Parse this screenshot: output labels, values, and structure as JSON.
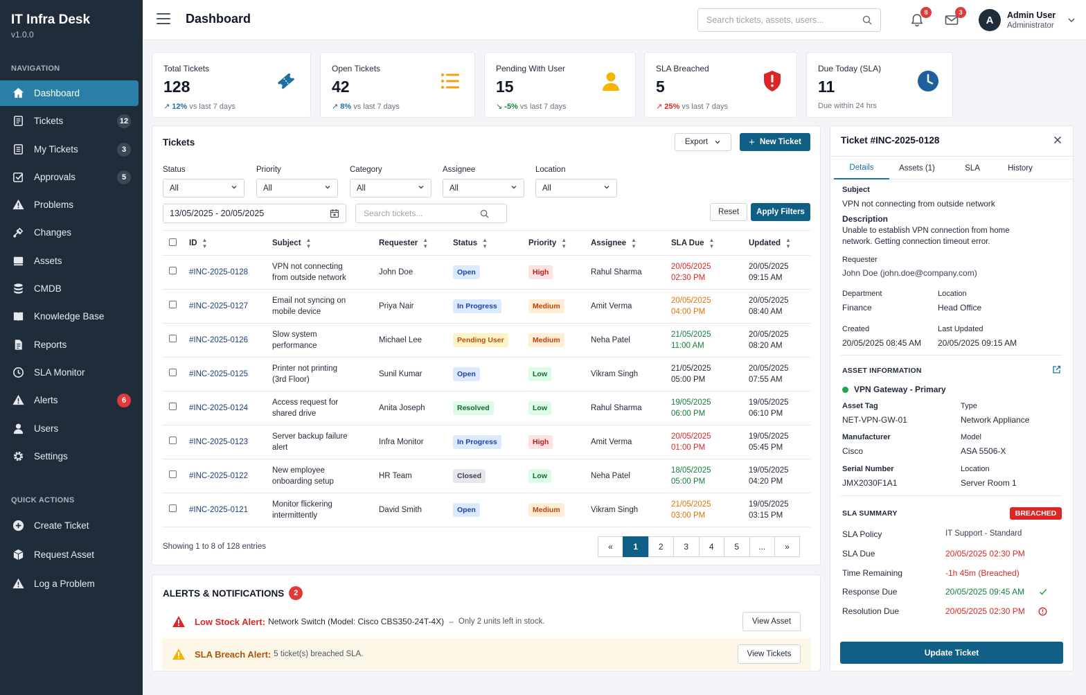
{
  "app": {
    "title": "IT Infra Desk",
    "version": "v1.0.0"
  },
  "sidebar": {
    "nav_heading": "NAVIGATION",
    "items": [
      {
        "label": "Dashboard",
        "icon": "home-icon"
      },
      {
        "label": "Tickets",
        "badge": "12",
        "icon": "ticket-icon"
      },
      {
        "label": "My Tickets",
        "badge": "3",
        "icon": "my-tickets-icon"
      },
      {
        "label": "Approvals",
        "badge": "5",
        "icon": "approvals-icon"
      },
      {
        "label": "Problems",
        "icon": "warning-icon"
      },
      {
        "label": "Changes",
        "icon": "changes-icon"
      },
      {
        "label": "Assets",
        "icon": "assets-icon"
      },
      {
        "label": "CMDB",
        "icon": "database-icon"
      },
      {
        "label": "Knowledge Base",
        "icon": "book-icon"
      },
      {
        "label": "Reports",
        "icon": "report-icon"
      },
      {
        "label": "SLA Monitor",
        "icon": "clock-icon"
      },
      {
        "label": "Alerts",
        "badge": "6",
        "icon": "alert-icon"
      },
      {
        "label": "Users",
        "icon": "user-icon"
      },
      {
        "label": "Settings",
        "icon": "gear-icon"
      }
    ],
    "quick_heading": "QUICK ACTIONS",
    "quick": [
      {
        "label": "Create Ticket",
        "icon": "plus-circle-icon"
      },
      {
        "label": "Request Asset",
        "icon": "box-icon"
      },
      {
        "label": "Log a Problem",
        "icon": "warning-icon"
      }
    ]
  },
  "header": {
    "title": "Dashboard",
    "search_placeholder": "Search tickets, assets, users...",
    "notifications_count": "8",
    "messages_count": "3",
    "user_initial": "A",
    "user_name": "Admin User",
    "user_role": "Administrator"
  },
  "stats": [
    {
      "label": "Total Tickets",
      "value": "128",
      "trend": "12%",
      "trend_text": "vs last 7 days"
    },
    {
      "label": "Open Tickets",
      "value": "42",
      "trend": "8%",
      "trend_text": "vs last 7 days"
    },
    {
      "label": "Pending With User",
      "value": "15",
      "trend": "-5%",
      "trend_text": "vs last 7 days"
    },
    {
      "label": "SLA Breached",
      "value": "5",
      "trend": "25%",
      "trend_text": "vs last 7 days"
    },
    {
      "label": "Due Today (SLA)",
      "value": "11",
      "trend_text": "Due within 24 hrs"
    }
  ],
  "tickets": {
    "title": "Tickets",
    "export_label": "Export",
    "new_label": "New Ticket",
    "filters": [
      {
        "label": "Status",
        "value": "All"
      },
      {
        "label": "Priority",
        "value": "All"
      },
      {
        "label": "Category",
        "value": "All"
      },
      {
        "label": "Assignee",
        "value": "All"
      },
      {
        "label": "Location",
        "value": "All"
      }
    ],
    "date_range": "13/05/2025 - 20/05/2025",
    "search_placeholder": "Search tickets...",
    "reset_label": "Reset",
    "apply_label": "Apply Filters",
    "columns": [
      "ID",
      "Subject",
      "Requester",
      "Status",
      "Priority",
      "Assignee",
      "SLA Due",
      "Updated"
    ],
    "rows": [
      {
        "id": "#INC-2025-0128",
        "subject1": "VPN not connecting",
        "subject2": "from outside network",
        "requester": "John Doe",
        "status": "Open",
        "priority": "High",
        "assignee": "Rahul Sharma",
        "sla1": "20/05/2025",
        "sla2": "02:30 PM",
        "sla_color": "#dc2626",
        "upd1": "20/05/2025",
        "upd2": "09:15 AM"
      },
      {
        "id": "#INC-2025-0127",
        "subject1": "Email not syncing on",
        "subject2": "mobile device",
        "requester": "Priya Nair",
        "status": "In Progress",
        "priority": "Medium",
        "assignee": "Amit Verma",
        "sla1": "20/05/2025",
        "sla2": "04:00 PM",
        "sla_color": "#d97706",
        "upd1": "20/05/2025",
        "upd2": "08:40 AM"
      },
      {
        "id": "#INC-2025-0126",
        "subject1": "Slow system",
        "subject2": "performance",
        "requester": "Michael Lee",
        "status": "Pending User",
        "priority": "Medium",
        "assignee": "Neha Patel",
        "sla1": "21/05/2025",
        "sla2": "11:00 AM",
        "sla_color": "#15803d",
        "upd1": "20/05/2025",
        "upd2": "08:20 AM"
      },
      {
        "id": "#INC-2025-0125",
        "subject1": "Printer not printing",
        "subject2": "(3rd Floor)",
        "requester": "Sunil Kumar",
        "status": "Open",
        "priority": "Low",
        "assignee": "Vikram Singh",
        "sla1": "21/05/2025",
        "sla2": "05:00 PM",
        "sla_color": "#1f2937",
        "upd1": "20/05/2025",
        "upd2": "07:55 AM"
      },
      {
        "id": "#INC-2025-0124",
        "subject1": "Access request for",
        "subject2": "shared drive",
        "requester": "Anita Joseph",
        "status": "Resolved",
        "priority": "Low",
        "assignee": "Rahul Sharma",
        "sla1": "19/05/2025",
        "sla2": "06:00 PM",
        "sla_color": "#15803d",
        "upd1": "19/05/2025",
        "upd2": "06:10 PM"
      },
      {
        "id": "#INC-2025-0123",
        "subject1": "Server backup failure",
        "subject2": "alert",
        "requester": "Infra Monitor",
        "status": "In Progress",
        "priority": "High",
        "assignee": "Amit Verma",
        "sla1": "20/05/2025",
        "sla2": "01:00 PM",
        "sla_color": "#dc2626",
        "upd1": "19/05/2025",
        "upd2": "05:45 PM"
      },
      {
        "id": "#INC-2025-0122",
        "subject1": "New employee",
        "subject2": "onboarding setup",
        "requester": "HR Team",
        "status": "Closed",
        "priority": "Low",
        "assignee": "Neha Patel",
        "sla1": "18/05/2025",
        "sla2": "05:00 PM",
        "sla_color": "#15803d",
        "upd1": "19/05/2025",
        "upd2": "04:20 PM"
      },
      {
        "id": "#INC-2025-0121",
        "subject1": "Monitor flickering",
        "subject2": "intermittently",
        "requester": "David Smith",
        "status": "Open",
        "priority": "Medium",
        "assignee": "Vikram Singh",
        "sla1": "21/05/2025",
        "sla2": "03:00 PM",
        "sla_color": "#d97706",
        "upd1": "19/05/2025",
        "upd2": "03:15 PM"
      }
    ],
    "showing": "Showing 1 to 8 of 128 entries",
    "pages": [
      "«",
      "1",
      "2",
      "3",
      "4",
      "5",
      "...",
      "»"
    ]
  },
  "alerts": {
    "title": "ALERTS & NOTIFICATIONS",
    "count": "2",
    "items": [
      {
        "title": "Low Stock Alert:",
        "text": "Network Switch (Model: Cisco CBS350-24T-4X)",
        "dash": "–",
        "sub": "Only 2 units left in stock.",
        "button": "View Asset"
      },
      {
        "title": "SLA Breach Alert:",
        "text": "5 ticket(s) breached SLA.",
        "button": "View Tickets"
      }
    ]
  },
  "detail": {
    "title": "Ticket #INC-2025-0128",
    "tabs": [
      "Details",
      "Assets (1)",
      "SLA",
      "History"
    ],
    "subject_label": "Subject",
    "subject": "VPN not connecting from outside network",
    "desc_label": "Description",
    "desc1": "Unable to establish VPN connection from home",
    "desc2": "network. Getting connection timeout error.",
    "requester_label": "Requester",
    "requester": "John Doe (john.doe@company.com)",
    "dept_label": "Department",
    "dept": "Finance",
    "loc_label": "Location",
    "loc": "Head Office",
    "created_label": "Created",
    "created": "20/05/2025 08:45 AM",
    "updated_label": "Last Updated",
    "updated": "20/05/2025 09:15 AM",
    "asset_heading": "ASSET INFORMATION",
    "asset_name": "VPN Gateway - Primary",
    "asset_tag_label": "Asset Tag",
    "asset_tag": "NET-VPN-GW-01",
    "type_label": "Type",
    "type": "Network Appliance",
    "mfr_label": "Manufacturer",
    "mfr": "Cisco",
    "model_label": "Model",
    "model": "ASA 5506-X",
    "serial_label": "Serial Number",
    "serial": "JMX2030F1A1",
    "aloc_label": "Location",
    "aloc": "Server Room 1",
    "sla_heading": "SLA SUMMARY",
    "sla_badge": "BREACHED",
    "sla_rows": [
      {
        "label": "SLA Policy",
        "value": "IT Support - Standard",
        "color": "#374151"
      },
      {
        "label": "SLA Due",
        "value": "20/05/2025 02:30 PM",
        "color": "#dc2626"
      },
      {
        "label": "Time Remaining",
        "value": "-1h 45m (Breached)",
        "color": "#dc2626"
      },
      {
        "label": "Response Due",
        "value": "20/05/2025 09:45 AM",
        "color": "#15803d"
      },
      {
        "label": "Resolution Due",
        "value": "20/05/2025 02:30 PM",
        "color": "#dc2626"
      }
    ],
    "update_label": "Update Ticket"
  }
}
